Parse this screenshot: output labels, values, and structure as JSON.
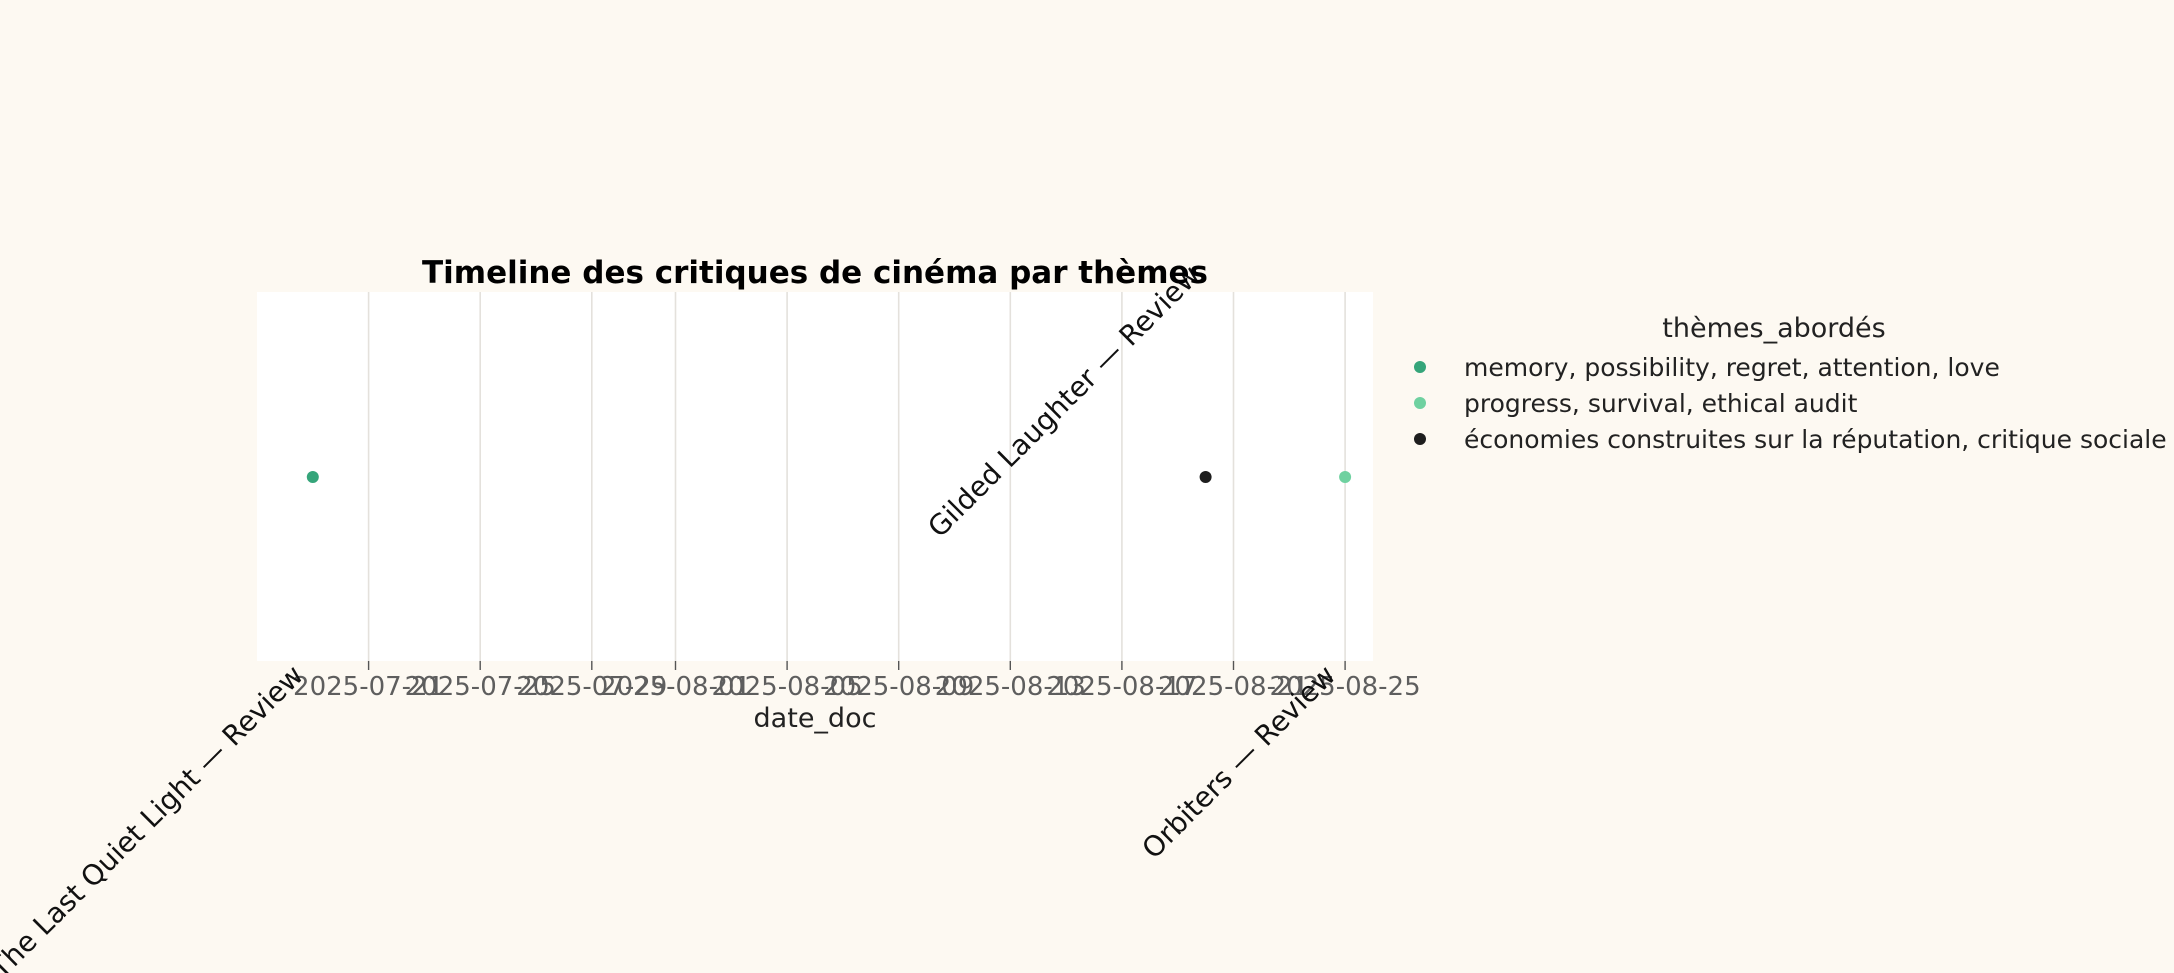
{
  "chart_data": {
    "type": "scatter",
    "title": "Timeline des critiques de cinéma par thèmes",
    "xlabel": "date_doc",
    "ylabel": "",
    "x_type": "date",
    "xlim": [
      "2025-07-17",
      "2025-08-26"
    ],
    "x_ticks": [
      "2025-07-21",
      "2025-07-25",
      "2025-07-29",
      "2025-08-01",
      "2025-08-05",
      "2025-08-09",
      "2025-08-13",
      "2025-08-17",
      "2025-08-21",
      "2025-08-25"
    ],
    "grid": "vertical",
    "legend": {
      "title": "thèmes_abordés",
      "placement": "right",
      "entries": [
        {
          "label": "memory, possibility, regret, attention, love",
          "color": "#35a57a"
        },
        {
          "label": "progress, survival, ethical audit",
          "color": "#6fd1a0"
        },
        {
          "label": "économies construites sur la réputation, critique sociale",
          "color": "#1e1e1e"
        }
      ]
    },
    "points": [
      {
        "x": "2025-07-19",
        "label": "The Last Quiet Light — Review",
        "theme": "memory, possibility, regret, attention, love",
        "color": "#35a57a",
        "label_side": "below"
      },
      {
        "x": "2025-08-20",
        "label": "Gilded Laughter — Review",
        "theme": "économies construites sur la réputation, critique sociale",
        "color": "#1e1e1e",
        "label_side": "above"
      },
      {
        "x": "2025-08-25",
        "label": "Orbiters — Review",
        "theme": "progress, survival, ethical audit",
        "color": "#6fd1a0",
        "label_side": "below"
      }
    ]
  }
}
